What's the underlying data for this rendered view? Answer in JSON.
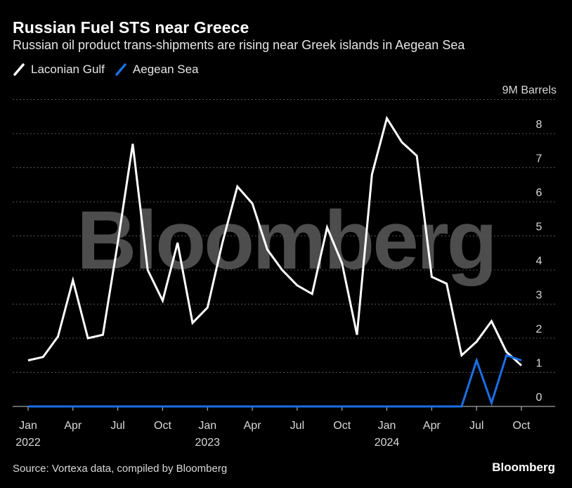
{
  "title": "Russian Fuel STS near Greece",
  "subtitle": "Russian oil product trans-shipments are rising near Greek islands in Aegean Sea",
  "source": "Source: Vortexa data, compiled by Bloomberg",
  "brand": "Bloomberg",
  "watermark": "Bloomberg",
  "colors": {
    "background": "#000000",
    "laconian": "#ffffff",
    "aegean": "#1a6fe6",
    "grid": "#555555",
    "axis_text": "#d9d9d9"
  },
  "chart_data": {
    "type": "line",
    "ylabel": "9M Barrels",
    "ylim": [
      0,
      8.5
    ],
    "y_ticks": [
      "0",
      "1",
      "2",
      "3",
      "4",
      "5",
      "6",
      "7",
      "8"
    ],
    "grid": "horizontal-dotted",
    "legend_position": "top-left",
    "x": [
      "2022-01",
      "2022-02",
      "2022-03",
      "2022-04",
      "2022-05",
      "2022-06",
      "2022-07",
      "2022-08",
      "2022-09",
      "2022-10",
      "2022-11",
      "2022-12",
      "2023-01",
      "2023-02",
      "2023-03",
      "2023-04",
      "2023-05",
      "2023-06",
      "2023-07",
      "2023-08",
      "2023-09",
      "2023-10",
      "2023-11",
      "2023-12",
      "2024-01",
      "2024-02",
      "2024-03",
      "2024-04",
      "2024-05",
      "2024-06",
      "2024-07",
      "2024-08",
      "2024-09",
      "2024-10"
    ],
    "x_ticks": [
      {
        "label": "Jan",
        "year": "2022"
      },
      {
        "label": "Apr",
        "year": ""
      },
      {
        "label": "Jul",
        "year": ""
      },
      {
        "label": "Oct",
        "year": ""
      },
      {
        "label": "Jan",
        "year": "2023"
      },
      {
        "label": "Apr",
        "year": ""
      },
      {
        "label": "Jul",
        "year": ""
      },
      {
        "label": "Oct",
        "year": ""
      },
      {
        "label": "Jan",
        "year": "2024"
      },
      {
        "label": "Apr",
        "year": ""
      },
      {
        "label": "Jul",
        "year": ""
      },
      {
        "label": "Oct",
        "year": ""
      }
    ],
    "series": [
      {
        "name": "Laconian Gulf",
        "values": [
          1.35,
          1.45,
          2.05,
          3.7,
          2.0,
          2.1,
          4.8,
          7.7,
          4.0,
          3.1,
          4.8,
          2.45,
          2.9,
          4.8,
          6.45,
          5.95,
          4.6,
          4.0,
          3.55,
          3.3,
          5.25,
          4.2,
          2.1,
          6.8,
          8.45,
          7.75,
          7.35,
          3.8,
          3.6,
          1.5,
          1.9,
          2.5,
          1.6,
          1.2
        ]
      },
      {
        "name": "Aegean Sea",
        "values": [
          0,
          0,
          0,
          0,
          0,
          0,
          0,
          0,
          0,
          0,
          0,
          0,
          0,
          0,
          0,
          0,
          0,
          0,
          0,
          0,
          0,
          0,
          0,
          0,
          0,
          0,
          0,
          0,
          0,
          0,
          1.35,
          0.1,
          1.5,
          1.35
        ]
      }
    ]
  }
}
